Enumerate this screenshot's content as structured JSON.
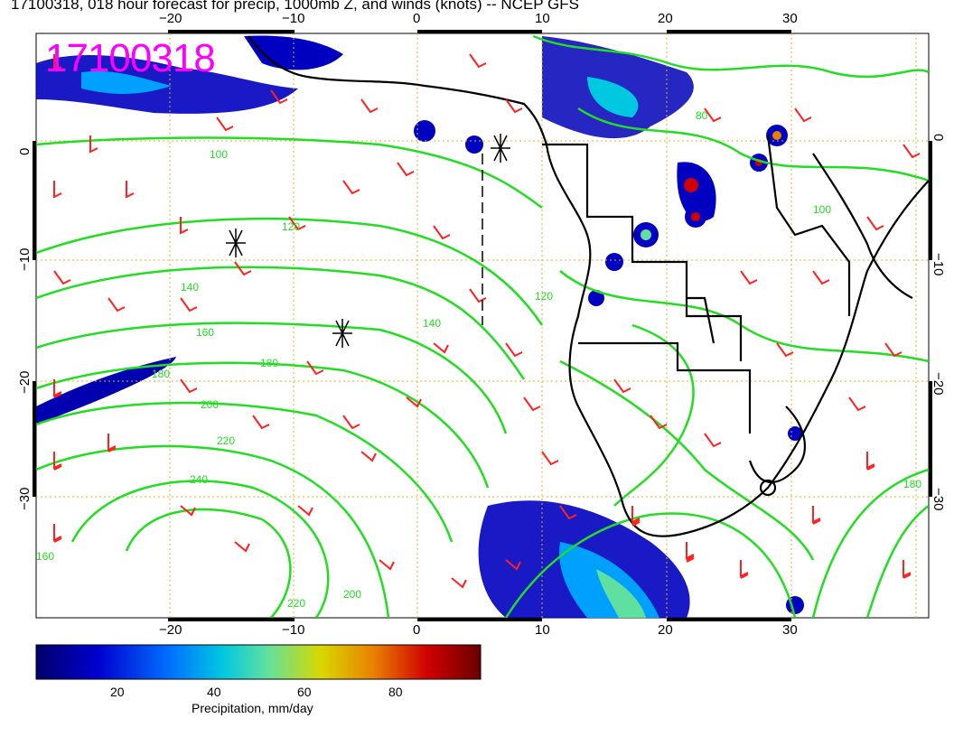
{
  "title": "17100318, 018 hour forecast for precip, 1000mb Z, and winds (knots) -- NCEP GFS",
  "stamp": "17100318",
  "map": {
    "lon_ticks": [
      "−20",
      "−10",
      "0",
      "10",
      "20",
      "30"
    ],
    "lat_ticks": [
      "0",
      "−10",
      "−20",
      "−30"
    ],
    "contour_labels": [
      "100",
      "120",
      "140",
      "160",
      "180",
      "200",
      "220",
      "240",
      "200",
      "180",
      "160",
      "140",
      "120",
      "80",
      "100",
      "180",
      "220"
    ],
    "colors": {
      "contour": "#22dd22",
      "barb": "#ff2020",
      "coast": "#000000",
      "grid": "#e0b020",
      "stamp": "#ff00ff"
    }
  },
  "colorbar": {
    "title": "Precipitation, mm/day",
    "ticks": [
      "20",
      "40",
      "60",
      "80"
    ],
    "colors": [
      "#00006a",
      "#0000d0",
      "#0070ff",
      "#00c8e0",
      "#60e0a0",
      "#d8d800",
      "#e88000",
      "#d00000",
      "#6a0000"
    ]
  }
}
